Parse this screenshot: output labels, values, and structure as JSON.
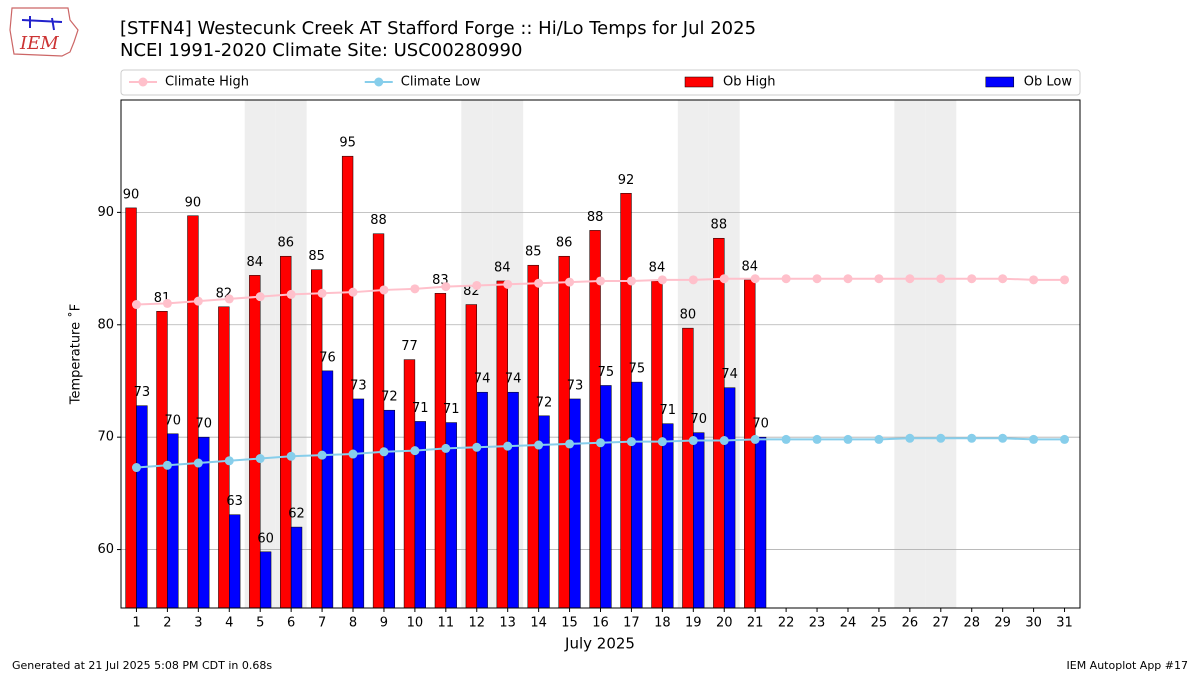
{
  "chart_data": {
    "type": "bar_line",
    "title": "[STFN4] Westecunk Creek  AT Stafford Forge :: Hi/Lo Temps for Jul 2025",
    "subtitle": "NCEI 1991-2020 Climate Site: USC00280990",
    "logo": "IEM",
    "ylabel": "Temperature ˚F",
    "xlabel": "July 2025",
    "footer_left": "Generated at 21 Jul 2025 5:08 PM CDT in 0.68s",
    "footer_right": "IEM Autoplot App #17",
    "x": [
      1,
      2,
      3,
      4,
      5,
      6,
      7,
      8,
      9,
      10,
      11,
      12,
      13,
      14,
      15,
      16,
      17,
      18,
      19,
      20,
      21,
      22,
      23,
      24,
      25,
      26,
      27,
      28,
      29,
      30,
      31
    ],
    "xlim": [
      0.5,
      31.5
    ],
    "xticks": [
      1,
      2,
      3,
      4,
      5,
      6,
      7,
      8,
      9,
      10,
      11,
      12,
      13,
      14,
      15,
      16,
      17,
      18,
      19,
      20,
      21,
      22,
      23,
      24,
      25,
      26,
      27,
      28,
      29,
      30,
      31
    ],
    "ylim": [
      54.8,
      100
    ],
    "yticks": [
      60,
      70,
      80,
      90
    ],
    "grid": true,
    "shaded_days": [
      5,
      6,
      12,
      13,
      19,
      20,
      26,
      27
    ],
    "shade_color": "#eeeeee",
    "legend": "top",
    "series": [
      {
        "name": "Climate High",
        "style": "line",
        "color": "#ffc0cb",
        "values": [
          81.8,
          81.9,
          82.1,
          82.3,
          82.5,
          82.7,
          82.8,
          82.9,
          83.1,
          83.2,
          83.4,
          83.5,
          83.6,
          83.7,
          83.8,
          83.9,
          83.9,
          84.0,
          84.0,
          84.1,
          84.1,
          84.1,
          84.1,
          84.1,
          84.1,
          84.1,
          84.1,
          84.1,
          84.1,
          84.0,
          84.0
        ]
      },
      {
        "name": "Climate Low",
        "style": "line",
        "color": "#87ceeb",
        "values": [
          67.3,
          67.5,
          67.7,
          67.9,
          68.1,
          68.3,
          68.4,
          68.5,
          68.7,
          68.8,
          69.0,
          69.1,
          69.2,
          69.3,
          69.4,
          69.5,
          69.6,
          69.6,
          69.7,
          69.7,
          69.8,
          69.8,
          69.8,
          69.8,
          69.8,
          69.9,
          69.9,
          69.9,
          69.9,
          69.8,
          69.8
        ]
      },
      {
        "name": "Ob High",
        "style": "bar",
        "offset": -1,
        "color": "#ff0000",
        "values": [
          90.4,
          81.2,
          89.7,
          81.6,
          84.4,
          86.1,
          84.9,
          95.0,
          88.1,
          76.9,
          82.8,
          81.8,
          83.9,
          85.3,
          86.1,
          88.4,
          91.7,
          83.9,
          79.7,
          87.7,
          84.0,
          null,
          null,
          null,
          null,
          null,
          null,
          null,
          null,
          null,
          null
        ],
        "value_labels": [
          "90",
          "81",
          "90",
          "82",
          "84",
          "86",
          "85",
          "95",
          "88",
          "77",
          "83",
          "82",
          "84",
          "85",
          "86",
          "88",
          "92",
          "84",
          "80",
          "88",
          "84",
          null,
          null,
          null,
          null,
          null,
          null,
          null,
          null,
          null,
          null
        ]
      },
      {
        "name": "Ob Low",
        "style": "bar",
        "offset": 0,
        "color": "#0000ff",
        "values": [
          72.8,
          70.3,
          70.0,
          63.1,
          59.8,
          62.0,
          75.9,
          73.4,
          72.4,
          71.4,
          71.3,
          74.0,
          74.0,
          71.9,
          73.4,
          74.6,
          74.9,
          71.2,
          70.4,
          74.4,
          70.0,
          null,
          null,
          null,
          null,
          null,
          null,
          null,
          null,
          null,
          null
        ],
        "value_labels": [
          "73",
          "70",
          "70",
          "63",
          "60",
          "62",
          "76",
          "73",
          "72",
          "71",
          "71",
          "74",
          "74",
          "72",
          "73",
          "75",
          "75",
          "71",
          "70",
          "74",
          "70",
          null,
          null,
          null,
          null,
          null,
          null,
          null,
          null,
          null,
          null
        ]
      }
    ]
  }
}
